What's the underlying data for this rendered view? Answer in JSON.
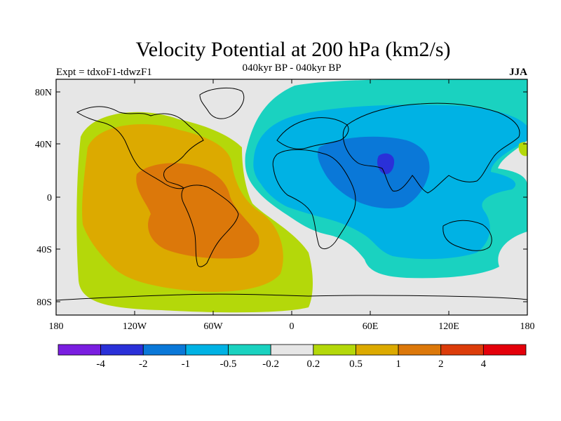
{
  "title": "Velocity Potential at 200 hPa (km2/s)",
  "subtitle_left": "Expt = tdxoF1-tdwzF1",
  "subtitle_center": "040kyr BP - 040kyr BP",
  "subtitle_right": "JJA",
  "lat_labels": [
    "80N",
    "40N",
    "0",
    "40S",
    "80S"
  ],
  "lon_labels": [
    "180",
    "120W",
    "60W",
    "0",
    "60E",
    "120E",
    "180"
  ],
  "colorbar": {
    "labels": [
      "-4",
      "-2",
      "-1",
      "-0.5",
      "-0.2",
      "0.2",
      "0.5",
      "1",
      "2",
      "4"
    ],
    "colors": [
      "#7a1ee0",
      "#2a30d8",
      "#0a78d8",
      "#00b2e4",
      "#1ad2c0",
      "#e6e6e6",
      "#b4d80a",
      "#dcaa00",
      "#dc780a",
      "#dc3c0a",
      "#e4000a"
    ]
  },
  "map_colors": {
    "neutral": "#e6e6e6",
    "pos_05": "#b4d80a",
    "pos_1": "#dcaa00",
    "pos_2": "#dc780a",
    "neg_02": "#1ad2c0",
    "neg_05": "#00b2e4",
    "neg_1": "#0a78d8",
    "neg_2": "#2a30d8"
  }
}
